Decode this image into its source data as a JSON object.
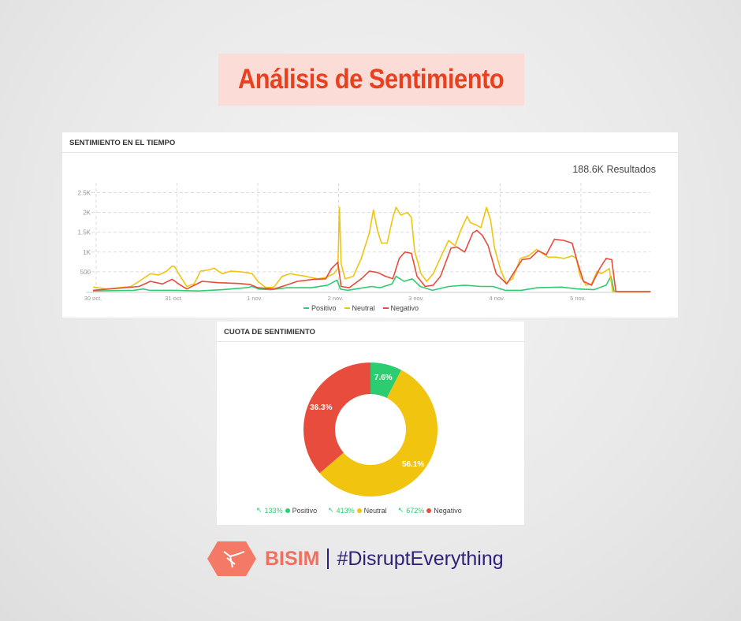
{
  "title": "Análisis de Sentimiento",
  "timeline_panel": {
    "title": "SENTIMIENTO EN EL TIEMPO",
    "results": "188.6K Resultados"
  },
  "share_panel": {
    "title": "CUOTA DE SENTIMIENTO",
    "legend": [
      {
        "change": "133%",
        "label": "Positivo",
        "color": "#2ecc71"
      },
      {
        "change": "413%",
        "label": "Neutral",
        "color": "#f1c40f"
      },
      {
        "change": "672%",
        "label": "Negativo",
        "color": "#e74c3c"
      }
    ]
  },
  "footer": {
    "brand": "BISIM",
    "tagline": "#DisruptEverything"
  },
  "chart_data": [
    {
      "type": "line",
      "title": "SENTIMIENTO EN EL TIEMPO",
      "xlabel": "",
      "ylabel": "",
      "x_unit": "days since 30 oct.",
      "xlim": [
        0,
        6.9
      ],
      "ylim": [
        0,
        2500
      ],
      "x_ticks": [
        {
          "x": 0,
          "label": "30 oct."
        },
        {
          "x": 1,
          "label": "31 oct."
        },
        {
          "x": 2,
          "label": "1 nov."
        },
        {
          "x": 3,
          "label": "2 nov."
        },
        {
          "x": 4,
          "label": "3 nov."
        },
        {
          "x": 5,
          "label": "4 nov."
        },
        {
          "x": 6,
          "label": "5 nov."
        }
      ],
      "y_ticks": [
        {
          "y": 500,
          "label": "500"
        },
        {
          "y": 1000,
          "label": "1K"
        },
        {
          "y": 1500,
          "label": "1.5K"
        },
        {
          "y": 2000,
          "label": "2K"
        },
        {
          "y": 2500,
          "label": "2.5K"
        }
      ],
      "grid": true,
      "legend_position": "bottom",
      "series": [
        {
          "name": "Positivo",
          "color": "#2ecc71",
          "points": [
            [
              0,
              16
            ],
            [
              0.5,
              32
            ],
            [
              0.62,
              65
            ],
            [
              0.7,
              32
            ],
            [
              1,
              32
            ],
            [
              1.3,
              16
            ],
            [
              1.6,
              48
            ],
            [
              1.9,
              97
            ],
            [
              1.97,
              129
            ],
            [
              2.05,
              65
            ],
            [
              2.2,
              48
            ],
            [
              2.4,
              97
            ],
            [
              2.7,
              97
            ],
            [
              2.9,
              161
            ],
            [
              3.02,
              290
            ],
            [
              3.06,
              65
            ],
            [
              3.15,
              32
            ],
            [
              3.35,
              97
            ],
            [
              3.45,
              129
            ],
            [
              3.55,
              97
            ],
            [
              3.7,
              194
            ],
            [
              3.75,
              387
            ],
            [
              3.85,
              258
            ],
            [
              3.95,
              322
            ],
            [
              4.05,
              129
            ],
            [
              4.2,
              32
            ],
            [
              4.4,
              129
            ],
            [
              4.6,
              161
            ],
            [
              4.8,
              129
            ],
            [
              4.95,
              129
            ],
            [
              5.1,
              32
            ],
            [
              5.3,
              32
            ],
            [
              5.5,
              97
            ],
            [
              5.8,
              113
            ],
            [
              6,
              65
            ],
            [
              6.2,
              48
            ],
            [
              6.35,
              161
            ],
            [
              6.41,
              387
            ],
            [
              6.45,
              0
            ],
            [
              6.9,
              0
            ]
          ]
        },
        {
          "name": "Neutral",
          "color": "#f1c40f",
          "points": [
            [
              0,
              116
            ],
            [
              0.17,
              65
            ],
            [
              0.47,
              129
            ],
            [
              0.57,
              258
            ],
            [
              0.71,
              452
            ],
            [
              0.81,
              419
            ],
            [
              0.91,
              516
            ],
            [
              0.98,
              645
            ],
            [
              1.01,
              632
            ],
            [
              1.06,
              452
            ],
            [
              1.16,
              129
            ],
            [
              1.25,
              194
            ],
            [
              1.33,
              516
            ],
            [
              1.43,
              548
            ],
            [
              1.5,
              594
            ],
            [
              1.55,
              516
            ],
            [
              1.6,
              452
            ],
            [
              1.7,
              516
            ],
            [
              1.8,
              503
            ],
            [
              1.89,
              484
            ],
            [
              1.97,
              452
            ],
            [
              2.04,
              258
            ],
            [
              2.14,
              97
            ],
            [
              2.24,
              116
            ],
            [
              2.34,
              387
            ],
            [
              2.44,
              452
            ],
            [
              2.53,
              419
            ],
            [
              2.63,
              387
            ],
            [
              2.78,
              323
            ],
            [
              2.88,
              355
            ],
            [
              2.98,
              452
            ],
            [
              3.03,
              581
            ],
            [
              3.05,
              2129
            ],
            [
              3.07,
              710
            ],
            [
              3.12,
              323
            ],
            [
              3.22,
              387
            ],
            [
              3.32,
              839
            ],
            [
              3.42,
              1484
            ],
            [
              3.47,
              2064
            ],
            [
              3.52,
              1548
            ],
            [
              3.57,
              1226
            ],
            [
              3.64,
              1226
            ],
            [
              3.71,
              1871
            ],
            [
              3.75,
              2129
            ],
            [
              3.81,
              1935
            ],
            [
              3.89,
              2000
            ],
            [
              3.94,
              1871
            ],
            [
              3.98,
              1032
            ],
            [
              4.06,
              452
            ],
            [
              4.13,
              258
            ],
            [
              4.21,
              452
            ],
            [
              4.31,
              903
            ],
            [
              4.4,
              1290
            ],
            [
              4.48,
              1161
            ],
            [
              4.55,
              1548
            ],
            [
              4.63,
              1903
            ],
            [
              4.67,
              1742
            ],
            [
              4.75,
              1677
            ],
            [
              4.8,
              1613
            ],
            [
              4.87,
              2129
            ],
            [
              4.92,
              1806
            ],
            [
              4.97,
              1097
            ],
            [
              5.04,
              581
            ],
            [
              5.11,
              226
            ],
            [
              5.19,
              323
            ],
            [
              5.29,
              839
            ],
            [
              5.39,
              903
            ],
            [
              5.49,
              1065
            ],
            [
              5.56,
              968
            ],
            [
              5.63,
              871
            ],
            [
              5.73,
              871
            ],
            [
              5.83,
              839
            ],
            [
              5.93,
              903
            ],
            [
              5.98,
              839
            ],
            [
              6.03,
              387
            ],
            [
              6.1,
              161
            ],
            [
              6.17,
              194
            ],
            [
              6.24,
              516
            ],
            [
              6.29,
              452
            ],
            [
              6.39,
              581
            ],
            [
              6.43,
              0
            ],
            [
              6.9,
              0
            ]
          ]
        },
        {
          "name": "Negativo",
          "color": "#e74c3c",
          "points": [
            [
              0,
              32
            ],
            [
              0.57,
              129
            ],
            [
              0.71,
              258
            ],
            [
              0.86,
              194
            ],
            [
              0.98,
              310
            ],
            [
              1.06,
              194
            ],
            [
              1.16,
              65
            ],
            [
              1.35,
              258
            ],
            [
              1.55,
              226
            ],
            [
              1.8,
              206
            ],
            [
              1.94,
              181
            ],
            [
              2.04,
              97
            ],
            [
              2.24,
              65
            ],
            [
              2.39,
              161
            ],
            [
              2.53,
              258
            ],
            [
              2.73,
              310
            ],
            [
              2.88,
              323
            ],
            [
              2.95,
              581
            ],
            [
              3.03,
              742
            ],
            [
              3.07,
              129
            ],
            [
              3.17,
              97
            ],
            [
              3.32,
              323
            ],
            [
              3.42,
              516
            ],
            [
              3.52,
              484
            ],
            [
              3.62,
              387
            ],
            [
              3.71,
              323
            ],
            [
              3.79,
              839
            ],
            [
              3.86,
              1000
            ],
            [
              3.94,
              968
            ],
            [
              4.01,
              387
            ],
            [
              4.11,
              129
            ],
            [
              4.21,
              161
            ],
            [
              4.3,
              387
            ],
            [
              4.43,
              1097
            ],
            [
              4.5,
              1129
            ],
            [
              4.6,
              1000
            ],
            [
              4.7,
              1484
            ],
            [
              4.75,
              1548
            ],
            [
              4.82,
              1419
            ],
            [
              4.89,
              1161
            ],
            [
              4.99,
              452
            ],
            [
              5.12,
              194
            ],
            [
              5.24,
              581
            ],
            [
              5.31,
              806
            ],
            [
              5.41,
              839
            ],
            [
              5.51,
              1032
            ],
            [
              5.61,
              935
            ],
            [
              5.71,
              1323
            ],
            [
              5.83,
              1290
            ],
            [
              5.93,
              1226
            ],
            [
              6,
              710
            ],
            [
              6.07,
              258
            ],
            [
              6.17,
              161
            ],
            [
              6.27,
              581
            ],
            [
              6.35,
              839
            ],
            [
              6.42,
              806
            ],
            [
              6.47,
              0
            ],
            [
              6.9,
              0
            ]
          ]
        }
      ]
    },
    {
      "type": "pie",
      "title": "CUOTA DE SENTIMIENTO",
      "donut": true,
      "categories": [
        "Positivo",
        "Neutral",
        "Negativo"
      ],
      "values": [
        7.6,
        56.1,
        36.3
      ],
      "labels": [
        "7.6%",
        "56.1%",
        "36.3%"
      ],
      "colors": [
        "#2ecc71",
        "#f1c40f",
        "#e74c3c"
      ],
      "legend_position": "bottom"
    }
  ]
}
